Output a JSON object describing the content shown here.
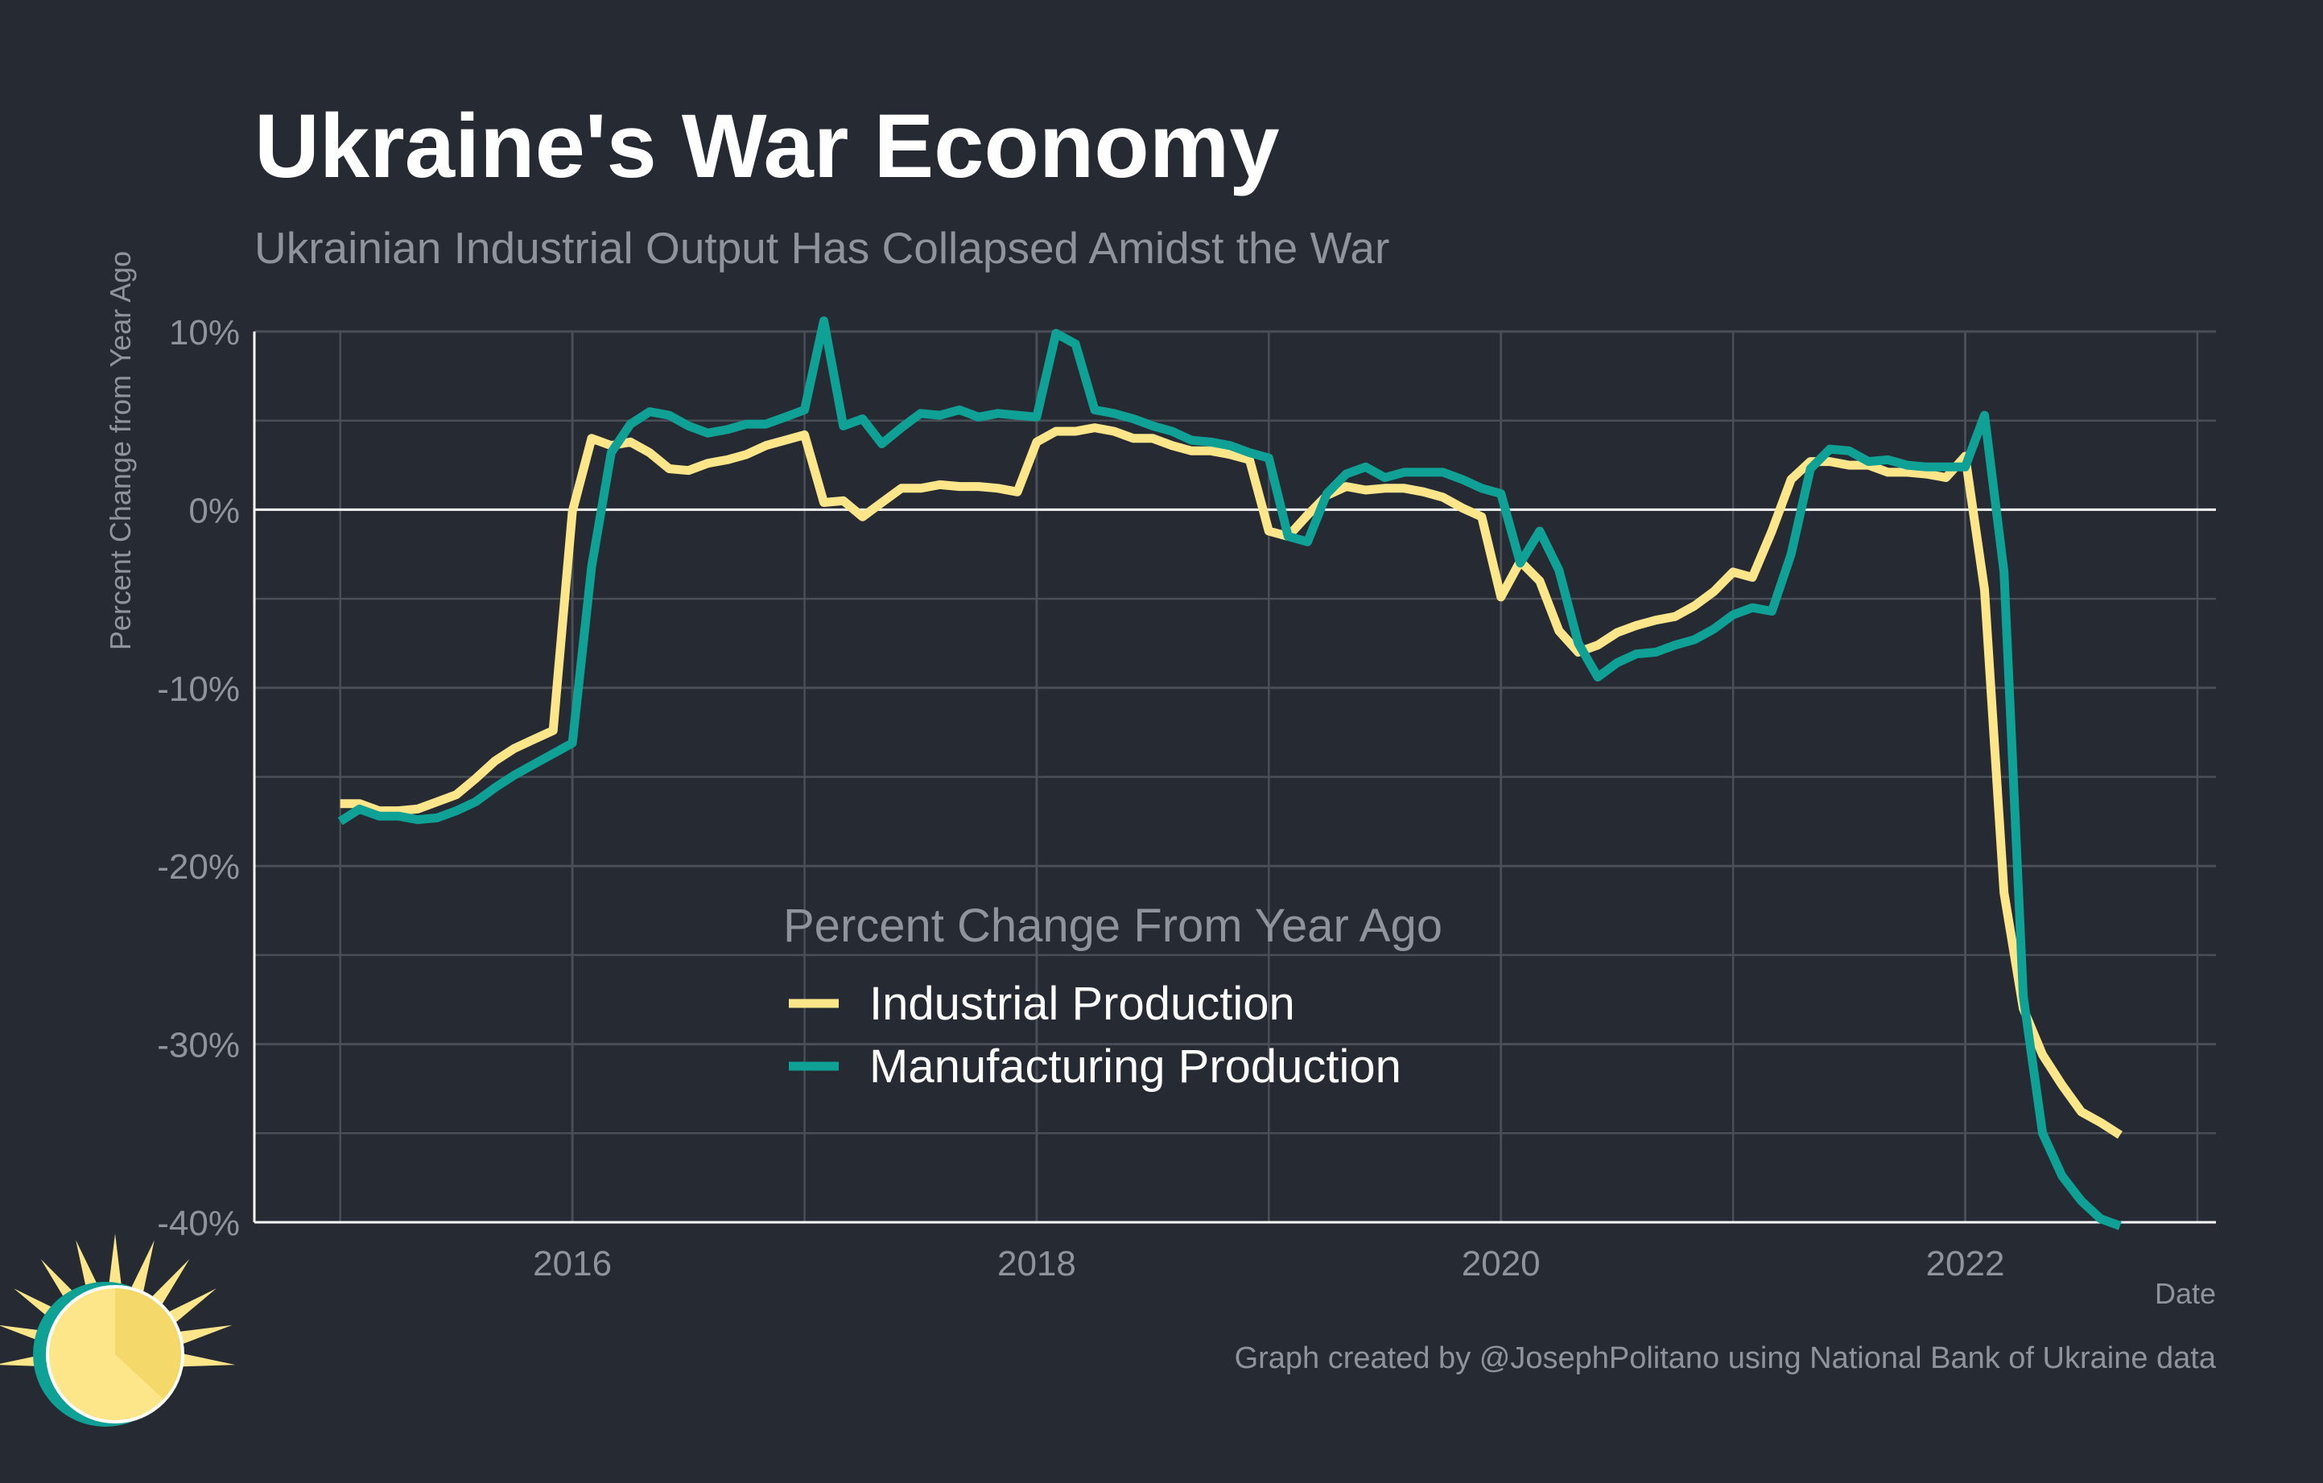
{
  "chart_data": {
    "type": "line",
    "title": "Ukraine's War Economy",
    "subtitle": "Ukrainian Industrial Output Has Collapsed Amidst the War",
    "xlabel": "Date",
    "ylabel": "Percent Change from Year Ago",
    "xlim": [
      2014.63,
      2023.08
    ],
    "ylim": [
      -40,
      10
    ],
    "x_ticks": [
      2016,
      2018,
      2020,
      2022
    ],
    "x_tick_labels": [
      "2016",
      "2018",
      "2020",
      "2022"
    ],
    "y_ticks": [
      10,
      0,
      -10,
      -20,
      -30,
      -40
    ],
    "y_tick_labels": [
      "10%",
      "0%",
      "-10%",
      "-20%",
      "-30%",
      "-40%"
    ],
    "grid": true,
    "legend": {
      "title": "Percent Change From Year Ago",
      "position": "center-bottom inside plot"
    },
    "x": [
      2015.0,
      2015.083,
      2015.167,
      2015.25,
      2015.333,
      2015.417,
      2015.5,
      2015.583,
      2015.667,
      2015.75,
      2015.833,
      2015.917,
      2016.0,
      2016.083,
      2016.167,
      2016.25,
      2016.333,
      2016.417,
      2016.5,
      2016.583,
      2016.667,
      2016.75,
      2016.833,
      2016.917,
      2017.0,
      2017.083,
      2017.167,
      2017.25,
      2017.333,
      2017.417,
      2017.5,
      2017.583,
      2017.667,
      2017.75,
      2017.833,
      2017.917,
      2018.0,
      2018.083,
      2018.167,
      2018.25,
      2018.333,
      2018.417,
      2018.5,
      2018.583,
      2018.667,
      2018.75,
      2018.833,
      2018.917,
      2019.0,
      2019.083,
      2019.167,
      2019.25,
      2019.333,
      2019.417,
      2019.5,
      2019.583,
      2019.667,
      2019.75,
      2019.833,
      2019.917,
      2020.0,
      2020.083,
      2020.167,
      2020.25,
      2020.333,
      2020.417,
      2020.5,
      2020.583,
      2020.667,
      2020.75,
      2020.833,
      2020.917,
      2021.0,
      2021.083,
      2021.167,
      2021.25,
      2021.333,
      2021.417,
      2021.5,
      2021.583,
      2021.667,
      2021.75,
      2021.833,
      2021.917,
      2022.0,
      2022.083,
      2022.167,
      2022.25,
      2022.333,
      2022.417,
      2022.5,
      2022.583,
      2022.667
    ],
    "series": [
      {
        "name": "Industrial Production",
        "color": "#fde68a",
        "values": [
          -16.5,
          -16.5,
          -16.9,
          -16.9,
          -16.8,
          -16.4,
          -16.0,
          -15.1,
          -14.1,
          -13.4,
          -12.9,
          -12.4,
          -0.1,
          4.0,
          3.6,
          3.8,
          3.2,
          2.3,
          2.2,
          2.6,
          2.8,
          3.1,
          3.6,
          3.9,
          4.2,
          0.4,
          0.5,
          -0.4,
          0.4,
          1.2,
          1.2,
          1.4,
          1.3,
          1.3,
          1.2,
          1.0,
          3.8,
          4.4,
          4.4,
          4.6,
          4.4,
          4.0,
          4.0,
          3.6,
          3.3,
          3.3,
          3.1,
          2.8,
          -1.2,
          -1.5,
          -0.3,
          0.8,
          1.3,
          1.1,
          1.2,
          1.2,
          1.0,
          0.7,
          0.1,
          -0.4,
          -4.9,
          -2.9,
          -4.0,
          -6.8,
          -8.0,
          -7.6,
          -6.9,
          -6.5,
          -6.2,
          -6.0,
          -5.4,
          -4.6,
          -3.5,
          -3.8,
          -1.2,
          1.7,
          2.7,
          2.7,
          2.5,
          2.5,
          2.1,
          2.1,
          2.0,
          1.8,
          3.0,
          -4.5,
          -21.5,
          -28.0,
          -30.6,
          -32.3,
          -33.8,
          -34.4,
          -35.1
        ]
      },
      {
        "name": "Manufacturing Production",
        "color": "#0fa195",
        "values": [
          -17.5,
          -16.8,
          -17.2,
          -17.2,
          -17.4,
          -17.3,
          -16.9,
          -16.4,
          -15.6,
          -14.9,
          -14.3,
          -13.7,
          -13.1,
          -3.2,
          3.2,
          4.8,
          5.5,
          5.3,
          4.7,
          4.3,
          4.5,
          4.8,
          4.8,
          5.2,
          5.6,
          10.6,
          4.7,
          5.1,
          3.7,
          4.6,
          5.4,
          5.3,
          5.6,
          5.2,
          5.4,
          5.3,
          5.2,
          9.9,
          9.3,
          5.6,
          5.4,
          5.1,
          4.7,
          4.4,
          3.9,
          3.8,
          3.6,
          3.2,
          2.9,
          -1.5,
          -1.8,
          0.9,
          2.0,
          2.4,
          1.8,
          2.1,
          2.1,
          2.1,
          1.7,
          1.2,
          0.9,
          -3.0,
          -1.2,
          -3.4,
          -7.5,
          -9.4,
          -8.6,
          -8.1,
          -8.0,
          -7.6,
          -7.3,
          -6.7,
          -5.9,
          -5.5,
          -5.7,
          -2.5,
          2.3,
          3.4,
          3.3,
          2.7,
          2.8,
          2.5,
          2.4,
          2.4,
          2.4,
          5.3,
          -3.5,
          -27.3,
          -35.0,
          -37.4,
          -38.8,
          -39.8,
          -40.2
        ]
      }
    ]
  },
  "credit": "Graph created by @JosephPolitano using National Bank of Ukraine data",
  "logo": {
    "icon": "sun-logo-icon",
    "colors": {
      "teal": "#0fa195",
      "yellow": "#fde68a",
      "gold": "#f4d96a"
    }
  }
}
